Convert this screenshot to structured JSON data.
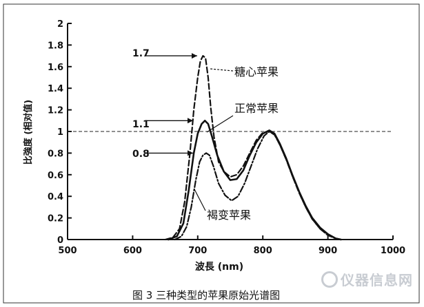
{
  "caption": "图 3  三种类型的苹果原始光谱图",
  "watermark": "仪器信息网",
  "chart_data": {
    "type": "line",
    "xlabel": "波長 (nm)",
    "ylabel": "比強度 (相对值)",
    "xlim": [
      500,
      1000
    ],
    "ylim": [
      0,
      2
    ],
    "x_ticks": [
      "500",
      "600",
      "700",
      "800",
      "900",
      "1000"
    ],
    "y_ticks": [
      "0",
      "0.2",
      "0.4",
      "0.6",
      "0.8",
      "1",
      "1.2",
      "1.4",
      "1.6",
      "1.8",
      "2"
    ],
    "reference_line": 1.0,
    "series": [
      {
        "name": "糖心苹果",
        "style": "dashed",
        "points": [
          [
            650,
            0
          ],
          [
            662,
            0.02
          ],
          [
            672,
            0.1
          ],
          [
            680,
            0.35
          ],
          [
            688,
            0.8
          ],
          [
            694,
            1.2
          ],
          [
            700,
            1.5
          ],
          [
            704,
            1.65
          ],
          [
            708,
            1.7
          ],
          [
            712,
            1.68
          ],
          [
            716,
            1.5
          ],
          [
            720,
            1.22
          ],
          [
            725,
            0.95
          ],
          [
            732,
            0.72
          ],
          [
            740,
            0.63
          ],
          [
            750,
            0.58
          ],
          [
            760,
            0.6
          ],
          [
            770,
            0.68
          ],
          [
            780,
            0.8
          ],
          [
            790,
            0.92
          ],
          [
            800,
            0.99
          ],
          [
            810,
            1.0
          ],
          [
            818,
            0.97
          ],
          [
            826,
            0.88
          ],
          [
            836,
            0.74
          ],
          [
            846,
            0.58
          ],
          [
            856,
            0.43
          ],
          [
            866,
            0.3
          ],
          [
            876,
            0.19
          ],
          [
            888,
            0.1
          ],
          [
            900,
            0.04
          ],
          [
            912,
            0.01
          ],
          [
            920,
            0
          ]
        ]
      },
      {
        "name": "正常苹果",
        "style": "solid",
        "points": [
          [
            655,
            0
          ],
          [
            668,
            0.03
          ],
          [
            678,
            0.15
          ],
          [
            686,
            0.45
          ],
          [
            694,
            0.8
          ],
          [
            700,
            0.98
          ],
          [
            706,
            1.07
          ],
          [
            711,
            1.1
          ],
          [
            716,
            1.07
          ],
          [
            722,
            0.95
          ],
          [
            730,
            0.78
          ],
          [
            740,
            0.63
          ],
          [
            750,
            0.55
          ],
          [
            760,
            0.56
          ],
          [
            770,
            0.64
          ],
          [
            780,
            0.78
          ],
          [
            790,
            0.9
          ],
          [
            800,
            0.98
          ],
          [
            810,
            1.01
          ],
          [
            818,
            0.98
          ],
          [
            826,
            0.89
          ],
          [
            836,
            0.75
          ],
          [
            846,
            0.59
          ],
          [
            856,
            0.44
          ],
          [
            866,
            0.31
          ],
          [
            876,
            0.2
          ],
          [
            888,
            0.11
          ],
          [
            900,
            0.05
          ],
          [
            912,
            0.01
          ],
          [
            920,
            0
          ]
        ]
      },
      {
        "name": "褐变苹果",
        "style": "dash-dot",
        "points": [
          [
            665,
            0
          ],
          [
            675,
            0.03
          ],
          [
            683,
            0.12
          ],
          [
            690,
            0.3
          ],
          [
            697,
            0.55
          ],
          [
            703,
            0.72
          ],
          [
            708,
            0.78
          ],
          [
            713,
            0.8
          ],
          [
            718,
            0.78
          ],
          [
            724,
            0.68
          ],
          [
            732,
            0.52
          ],
          [
            742,
            0.41
          ],
          [
            752,
            0.36
          ],
          [
            762,
            0.4
          ],
          [
            772,
            0.52
          ],
          [
            782,
            0.68
          ],
          [
            792,
            0.84
          ],
          [
            802,
            0.96
          ],
          [
            810,
            1.0
          ],
          [
            818,
            0.97
          ],
          [
            826,
            0.88
          ],
          [
            836,
            0.74
          ],
          [
            846,
            0.58
          ],
          [
            856,
            0.43
          ],
          [
            866,
            0.3
          ],
          [
            876,
            0.19
          ],
          [
            888,
            0.1
          ],
          [
            900,
            0.04
          ],
          [
            912,
            0.01
          ],
          [
            920,
            0
          ]
        ]
      }
    ],
    "annotations": [
      {
        "text": "1.7",
        "value": 1.7
      },
      {
        "text": "1.1",
        "value": 1.1
      },
      {
        "text": "0.8",
        "value": 0.8
      }
    ]
  }
}
